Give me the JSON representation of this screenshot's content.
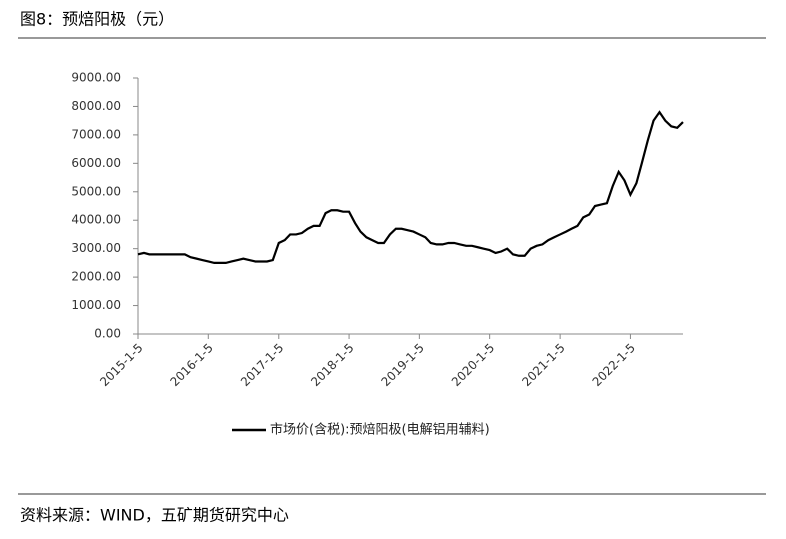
{
  "chart_data": {
    "type": "line",
    "title": "图8：预焙阳极（元）",
    "source": "资料来源：WIND，五矿期货研究中心",
    "x": [
      "2015-1-5",
      "2015-2-5",
      "2015-3-5",
      "2015-4-5",
      "2015-5-5",
      "2015-6-5",
      "2015-7-5",
      "2015-8-5",
      "2015-9-5",
      "2015-10-5",
      "2015-11-5",
      "2015-12-5",
      "2016-1-5",
      "2016-2-5",
      "2016-3-5",
      "2016-4-5",
      "2016-5-5",
      "2016-6-5",
      "2016-7-5",
      "2016-8-5",
      "2016-9-5",
      "2016-10-5",
      "2016-11-5",
      "2016-12-5",
      "2017-1-5",
      "2017-2-5",
      "2017-3-5",
      "2017-4-5",
      "2017-5-5",
      "2017-6-5",
      "2017-7-5",
      "2017-8-5",
      "2017-9-5",
      "2017-10-5",
      "2017-11-5",
      "2017-12-5",
      "2018-1-5",
      "2018-2-5",
      "2018-3-5",
      "2018-4-5",
      "2018-5-5",
      "2018-6-5",
      "2018-7-5",
      "2018-8-5",
      "2018-9-5",
      "2018-10-5",
      "2018-11-5",
      "2018-12-5",
      "2019-1-5",
      "2019-2-5",
      "2019-3-5",
      "2019-4-5",
      "2019-5-5",
      "2019-6-5",
      "2019-7-5",
      "2019-8-5",
      "2019-9-5",
      "2019-10-5",
      "2019-11-5",
      "2019-12-5",
      "2020-1-5",
      "2020-2-5",
      "2020-3-5",
      "2020-4-5",
      "2020-5-5",
      "2020-6-5",
      "2020-7-5",
      "2020-8-5",
      "2020-9-5",
      "2020-10-5",
      "2020-11-5",
      "2020-12-5",
      "2021-1-5",
      "2021-2-5",
      "2021-3-5",
      "2021-4-5",
      "2021-5-5",
      "2021-6-5",
      "2021-7-5",
      "2021-8-5",
      "2021-9-5",
      "2021-10-5",
      "2021-11-5",
      "2021-12-5",
      "2022-1-5",
      "2022-2-5",
      "2022-3-5",
      "2022-4-5",
      "2022-5-5",
      "2022-6-5",
      "2022-7-5",
      "2022-8-5",
      "2022-9-5",
      "2022-10-5"
    ],
    "series": [
      {
        "name": "市场价(含税):预焙阳极(电解铝用辅料)",
        "color": "#000000",
        "values": [
          2800,
          2850,
          2800,
          2800,
          2800,
          2800,
          2800,
          2800,
          2800,
          2700,
          2650,
          2600,
          2550,
          2500,
          2500,
          2500,
          2550,
          2600,
          2650,
          2600,
          2550,
          2550,
          2550,
          2600,
          3200,
          3300,
          3500,
          3500,
          3550,
          3700,
          3800,
          3800,
          4250,
          4350,
          4350,
          4300,
          4300,
          3900,
          3600,
          3400,
          3300,
          3200,
          3200,
          3500,
          3700,
          3700,
          3650,
          3600,
          3500,
          3400,
          3200,
          3150,
          3150,
          3200,
          3200,
          3150,
          3100,
          3100,
          3050,
          3000,
          2950,
          2850,
          2900,
          3000,
          2800,
          2750,
          2750,
          3000,
          3100,
          3150,
          3300,
          3400,
          3500,
          3600,
          3700,
          3800,
          4100,
          4200,
          4500,
          4550,
          4600,
          5200,
          5700,
          5400,
          4900,
          5300,
          6000,
          6800,
          7500,
          7800,
          7500,
          7300,
          7250,
          7450
        ]
      }
    ],
    "xlim": [
      "2015-1-5",
      "2022-10-5"
    ],
    "xticks": [
      "2015-1-5",
      "2016-1-5",
      "2017-1-5",
      "2018-1-5",
      "2019-1-5",
      "2020-1-5",
      "2021-1-5",
      "2022-1-5"
    ],
    "ylim": [
      0,
      9000
    ],
    "yticks": [
      {
        "value": 0,
        "label": "0.00"
      },
      {
        "value": 1000,
        "label": "1000.00"
      },
      {
        "value": 2000,
        "label": "2000.00"
      },
      {
        "value": 3000,
        "label": "3000.00"
      },
      {
        "value": 4000,
        "label": "4000.00"
      },
      {
        "value": 5000,
        "label": "5000.00"
      },
      {
        "value": 6000,
        "label": "6000.00"
      },
      {
        "value": 7000,
        "label": "7000.00"
      },
      {
        "value": 8000,
        "label": "8000.00"
      },
      {
        "value": 9000,
        "label": "9000.00"
      }
    ]
  }
}
